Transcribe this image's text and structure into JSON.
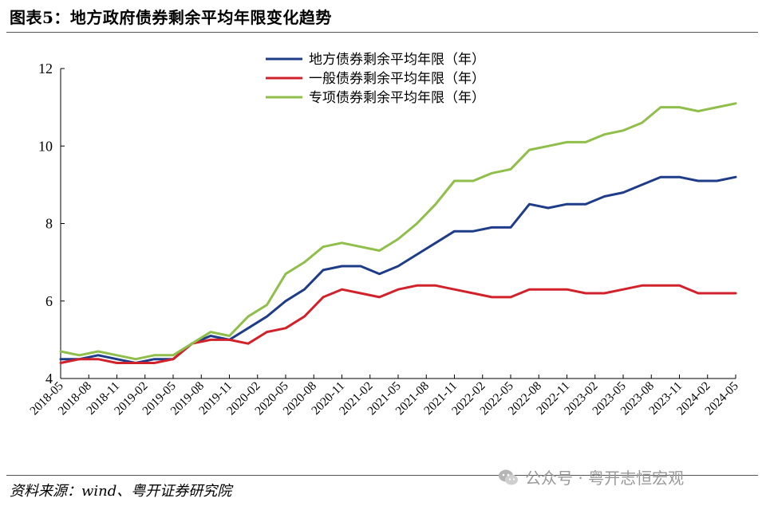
{
  "header": {
    "title": "图表5：地方政府债券剩余平均年限变化趋势"
  },
  "footer": {
    "source": "资料来源：wind、粤开证券研究院",
    "watermark_text": "公众号 · 粤开志恒宏观",
    "watermark_icon": "wechat-icon"
  },
  "chart_data": {
    "type": "line",
    "title": "",
    "xlabel": "",
    "ylabel": "",
    "ylim": [
      4,
      12
    ],
    "yticks": [
      4,
      6,
      8,
      10,
      12
    ],
    "grid": false,
    "legend_position": "top-center",
    "x": [
      "2018-05",
      "2018-07",
      "2018-09",
      "2018-11",
      "2019-01",
      "2019-03",
      "2019-05",
      "2019-07",
      "2019-09",
      "2019-11",
      "2020-01",
      "2020-03",
      "2020-05",
      "2020-07",
      "2020-09",
      "2020-11",
      "2021-01",
      "2021-03",
      "2021-05",
      "2021-07",
      "2021-09",
      "2021-11",
      "2022-01",
      "2022-03",
      "2022-05",
      "2022-07",
      "2022-09",
      "2022-11",
      "2023-01",
      "2023-03",
      "2023-05",
      "2023-07",
      "2023-09",
      "2023-11",
      "2024-01",
      "2024-03",
      "2024-05"
    ],
    "xticks": [
      "2018-05",
      "2018-08",
      "2018-11",
      "2019-02",
      "2019-05",
      "2019-08",
      "2019-11",
      "2020-02",
      "2020-05",
      "2020-08",
      "2020-11",
      "2021-02",
      "2021-05",
      "2021-08",
      "2021-11",
      "2022-02",
      "2022-05",
      "2022-08",
      "2022-11",
      "2023-02",
      "2023-05",
      "2023-08",
      "2023-11",
      "2024-02",
      "2024-05"
    ],
    "series": [
      {
        "name": "地方债券剩余平均年限（年）",
        "color": "#1f3c88",
        "values": [
          4.5,
          4.5,
          4.6,
          4.5,
          4.4,
          4.5,
          4.5,
          4.9,
          5.1,
          5.0,
          5.3,
          5.6,
          6.0,
          6.3,
          6.8,
          6.9,
          6.9,
          6.7,
          6.9,
          7.2,
          7.5,
          7.8,
          7.8,
          7.9,
          7.9,
          8.5,
          8.4,
          8.5,
          8.5,
          8.7,
          8.8,
          9.0,
          9.2,
          9.2,
          9.1,
          9.1,
          9.2
        ]
      },
      {
        "name": "一般债券剩余平均年限（年）",
        "color": "#d1222b",
        "values": [
          4.4,
          4.5,
          4.5,
          4.4,
          4.4,
          4.4,
          4.5,
          4.9,
          5.0,
          5.0,
          4.9,
          5.2,
          5.3,
          5.6,
          6.1,
          6.3,
          6.2,
          6.1,
          6.3,
          6.4,
          6.4,
          6.3,
          6.2,
          6.1,
          6.1,
          6.3,
          6.3,
          6.3,
          6.2,
          6.2,
          6.3,
          6.4,
          6.4,
          6.4,
          6.2,
          6.2,
          6.2
        ]
      },
      {
        "name": "专项债券剩余平均年限（年）",
        "color": "#8fbe4a",
        "values": [
          4.7,
          4.6,
          4.7,
          4.6,
          4.5,
          4.6,
          4.6,
          4.9,
          5.2,
          5.1,
          5.6,
          5.9,
          6.7,
          7.0,
          7.4,
          7.5,
          7.4,
          7.3,
          7.6,
          8.0,
          8.5,
          9.1,
          9.1,
          9.3,
          9.4,
          9.9,
          10.0,
          10.1,
          10.1,
          10.3,
          10.4,
          10.6,
          11.0,
          11.0,
          10.9,
          11.0,
          11.1
        ]
      }
    ]
  }
}
